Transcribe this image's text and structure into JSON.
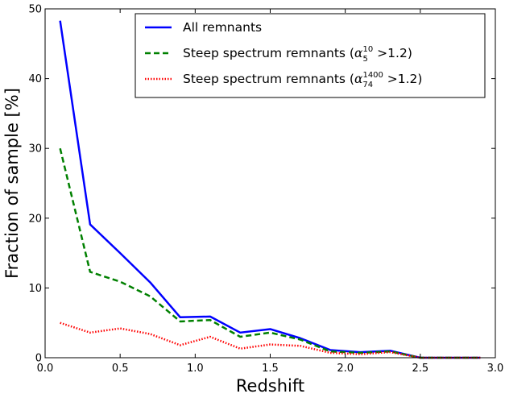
{
  "chart_data": {
    "type": "line",
    "title": "",
    "xlabel": "Redshift",
    "ylabel": "Fraction of sample [%]",
    "xlim": [
      0.0,
      3.0
    ],
    "ylim": [
      0,
      50
    ],
    "xticks": [
      "0.0",
      "0.5",
      "1.0",
      "1.5",
      "2.0",
      "2.5",
      "3.0"
    ],
    "yticks": [
      "0",
      "10",
      "20",
      "30",
      "40",
      "50"
    ],
    "grid": false,
    "legend_position": "top-right",
    "x": [
      0.1,
      0.3,
      0.5,
      0.7,
      0.9,
      1.1,
      1.3,
      1.5,
      1.7,
      1.9,
      2.1,
      2.3,
      2.5,
      2.7,
      2.9
    ],
    "series": [
      {
        "name": "All remnants",
        "color": "#0000ff",
        "style": "solid",
        "values": [
          48.3,
          19.1,
          15.0,
          10.8,
          5.8,
          5.9,
          3.6,
          4.1,
          2.8,
          1.1,
          0.8,
          1.0,
          0.0,
          0.0,
          0.0
        ]
      },
      {
        "name": "Steep spectrum remnants",
        "name_math": {
          "symbol": "α",
          "sub": "5",
          "sup": "10",
          "rel": " >1.2)"
        },
        "color": "#008000",
        "style": "dashed",
        "values": [
          30.0,
          12.3,
          10.9,
          8.8,
          5.2,
          5.4,
          3.0,
          3.6,
          2.6,
          0.9,
          0.7,
          0.9,
          0.0,
          0.0,
          0.0
        ]
      },
      {
        "name": "Steep spectrum remnants",
        "name_math": {
          "symbol": "α",
          "sub": "74",
          "sup": "1400",
          "rel": " >1.2)"
        },
        "color": "#ff0000",
        "style": "dotted",
        "values": [
          5.0,
          3.6,
          4.2,
          3.4,
          1.8,
          3.0,
          1.3,
          1.9,
          1.7,
          0.7,
          0.5,
          0.8,
          0.0,
          0.0,
          0.0
        ]
      }
    ]
  }
}
